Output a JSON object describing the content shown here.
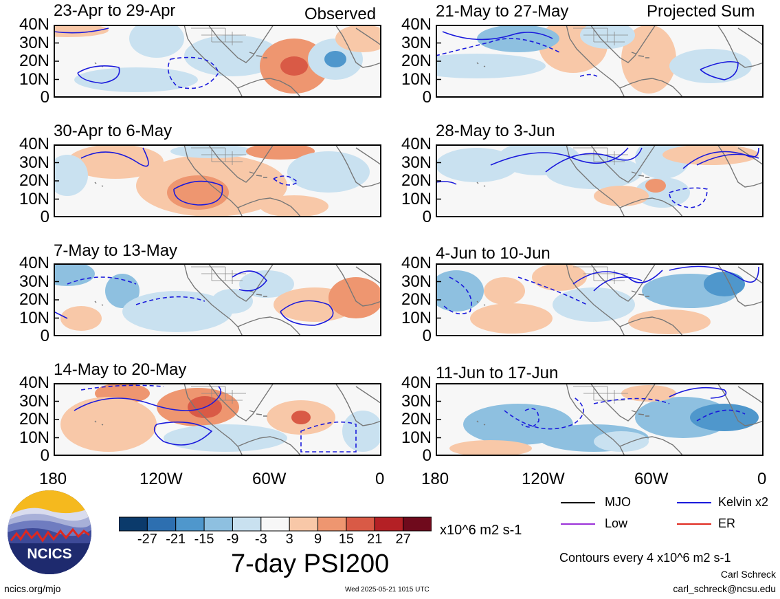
{
  "header": {
    "observed_label": "Observed",
    "projected_label": "Projected Sum"
  },
  "panels": {
    "left": [
      {
        "title": "23-Apr to 29-Apr"
      },
      {
        "title": "30-Apr to 6-May"
      },
      {
        "title": "7-May to 13-May"
      },
      {
        "title": "14-May to 20-May"
      }
    ],
    "right": [
      {
        "title": "21-May to 27-May"
      },
      {
        "title": "28-May to 3-Jun"
      },
      {
        "title": "4-Jun to 10-Jun"
      },
      {
        "title": "11-Jun to 17-Jun"
      }
    ]
  },
  "axes": {
    "lat_labels": [
      "40N",
      "30N",
      "20N",
      "10N",
      "0"
    ],
    "lon_labels": [
      "180",
      "120W",
      "60W",
      "0"
    ]
  },
  "colorbar": {
    "tick_labels": [
      "-27",
      "-21",
      "-15",
      "-9",
      "-3",
      "3",
      "9",
      "15",
      "21",
      "27"
    ],
    "colors": [
      "#0b3a6b",
      "#2d6fb0",
      "#4f97cc",
      "#8ec0e0",
      "#c9e1f0",
      "#f7f7f7",
      "#f8c8a8",
      "#ee9670",
      "#d95a46",
      "#b42025",
      "#6f0a1c"
    ],
    "units": "x10^6 m2 s-1",
    "title": "7-day PSI200"
  },
  "legend": {
    "mjo": {
      "label": "MJO",
      "color": "#000000"
    },
    "kelvin": {
      "label": "Kelvin x2",
      "color": "#1a1adc"
    },
    "low": {
      "label": "Low",
      "color": "#9b30d8"
    },
    "er": {
      "label": "ER",
      "color": "#e0281e"
    },
    "contour_note": "Contours every 4 x10^6 m2 s-1"
  },
  "footer": {
    "logo_text": "NCICS",
    "url": "ncics.org/mjo",
    "timestamp": "Wed 2025-05-21 1015 UTC",
    "author": "Carl Schreck",
    "email": "carl_schreck@ncsu.edu"
  }
}
